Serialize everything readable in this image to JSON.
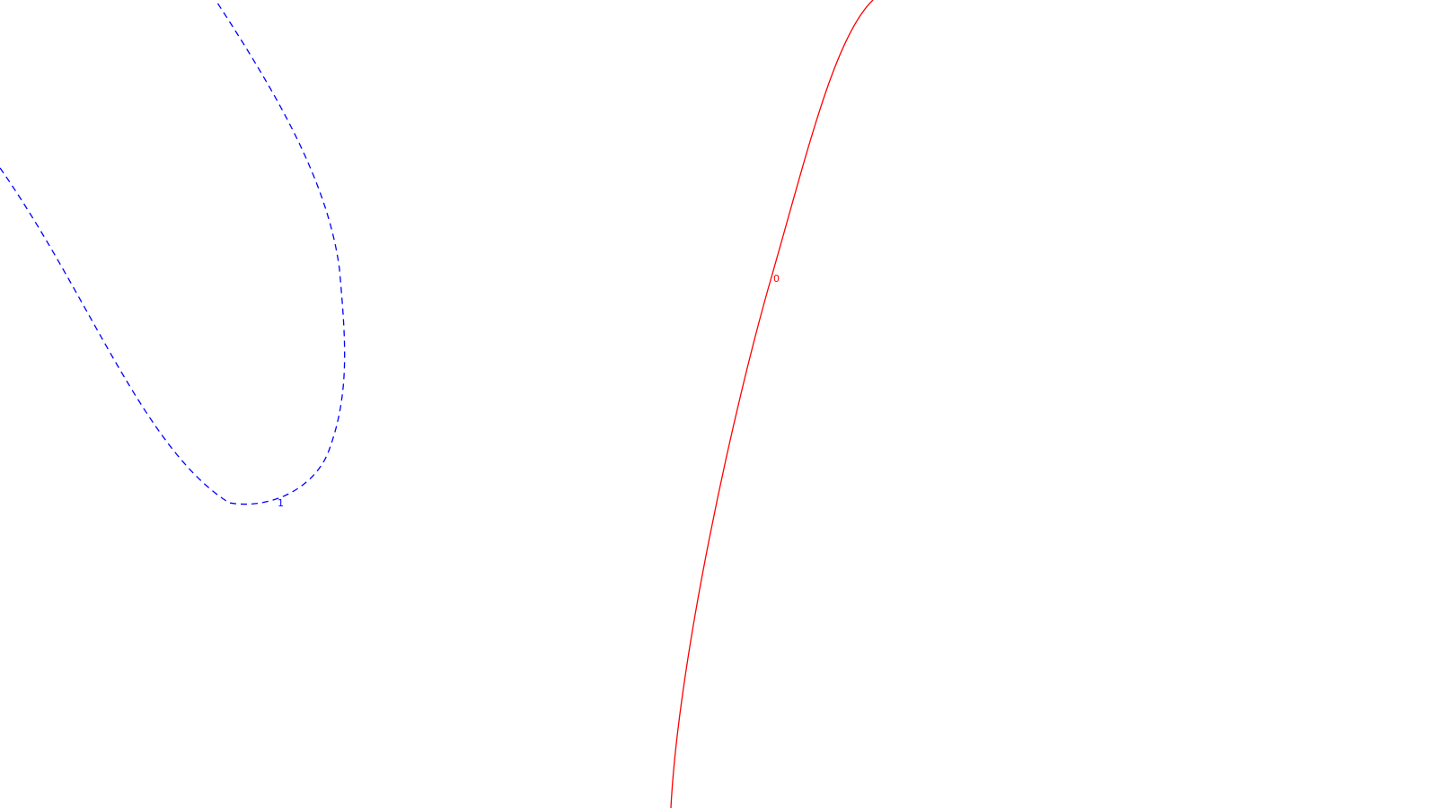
{
  "contours": [
    {
      "level_label": "1",
      "color": "#0000ff",
      "line_style": "dashed"
    },
    {
      "level_label": "0",
      "color": "#ff0000",
      "line_style": "solid"
    }
  ]
}
